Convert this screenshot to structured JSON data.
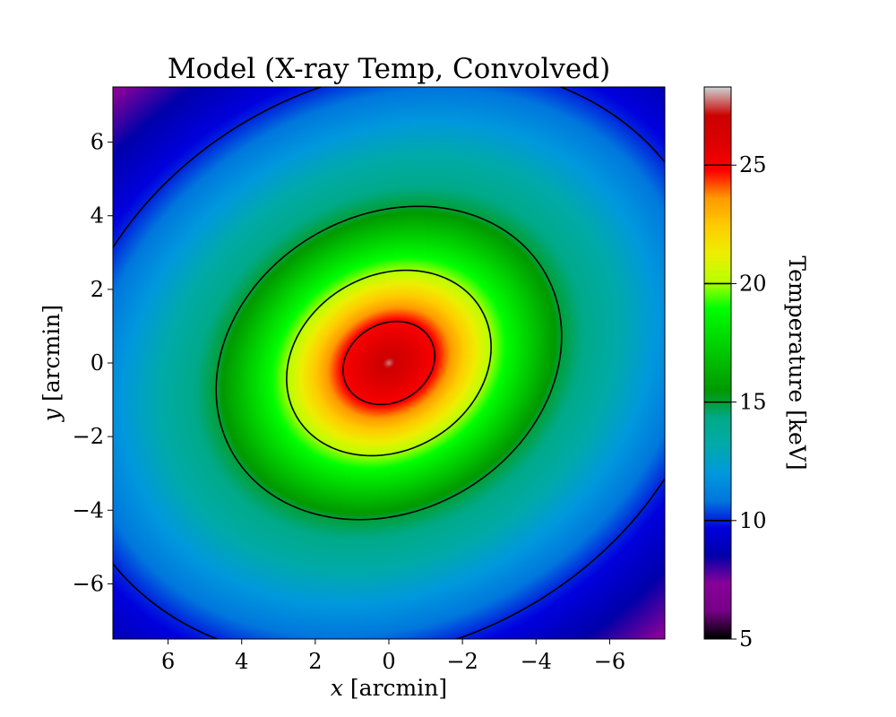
{
  "chart_data": {
    "type": "heatmap",
    "title": "Model (X-ray Temp, Convolved)",
    "xlabel": {
      "var": "x",
      "unit": " [arcmin]"
    },
    "ylabel": {
      "var": "y",
      "unit": " [arcmin]"
    },
    "xlim": [
      7.5,
      -7.5
    ],
    "ylim": [
      -7.5,
      7.5
    ],
    "x_inverted": true,
    "xticks": [
      6,
      4,
      2,
      0,
      -2,
      -4,
      -6
    ],
    "yticks": [
      -6,
      -4,
      -2,
      0,
      2,
      4,
      6
    ],
    "colorbar": {
      "label": "Temperature [keV]",
      "vmin": 5,
      "vmax": 28.3,
      "ticks": [
        5,
        10,
        15,
        20,
        25
      ],
      "colormap": "nipy_spectral"
    },
    "contour_levels_keV": [
      10,
      15,
      20,
      25
    ],
    "model": {
      "center": [
        0,
        0
      ],
      "peak_temperature_keV": 28.3,
      "ellipticity_axis_ratio": 0.82,
      "major_axis_angle_deg": 150,
      "isotherm_semi_major_arcmin": {
        "25": 1.3,
        "20": 2.9,
        "15": 4.9,
        "10": 9.3
      },
      "edge_temperature_keV": 7
    }
  }
}
